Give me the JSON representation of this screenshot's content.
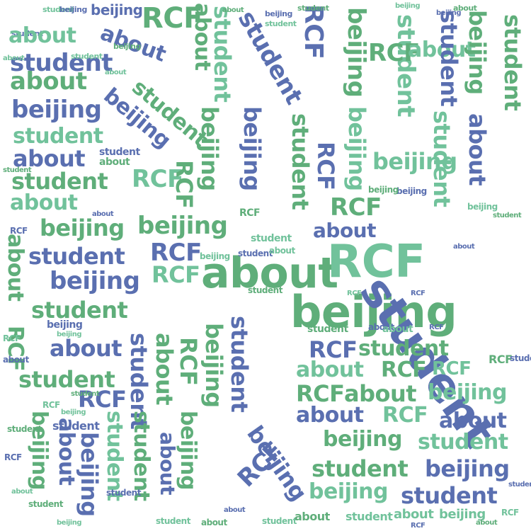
{
  "words": {
    "student": "student",
    "beijing": "beijing",
    "about": "about",
    "rcf": "RCF"
  },
  "palette": {
    "blue": "#5a6fb0",
    "green": "#5fae7a",
    "mint": "#71c29b",
    "background": "#ffffff"
  }
}
